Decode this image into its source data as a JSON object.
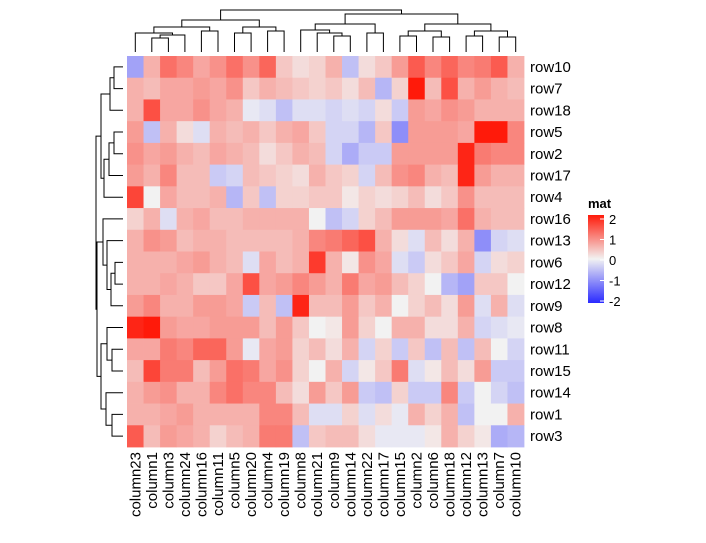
{
  "chart_data": {
    "type": "heatmap",
    "title": "",
    "legend": {
      "title": "mat",
      "ticks": [
        2,
        1,
        0,
        -1,
        -2
      ],
      "tick_labels": [
        "2",
        "1",
        "0",
        "-1",
        "-2"
      ],
      "color_stops": [
        {
          "value": -2,
          "color": "#2a2aff"
        },
        {
          "value": 0,
          "color": "#f2f2f2"
        },
        {
          "value": 2,
          "color": "#ff1a0a"
        }
      ]
    },
    "columns": [
      "column23",
      "column1",
      "column3",
      "column24",
      "column16",
      "column11",
      "column5",
      "column20",
      "column4",
      "column19",
      "column8",
      "column21",
      "column9",
      "column14",
      "column22",
      "column17",
      "column15",
      "column2",
      "column6",
      "column18",
      "column12",
      "column13",
      "column7",
      "column10"
    ],
    "rows": [
      "row10",
      "row7",
      "row18",
      "row5",
      "row2",
      "row17",
      "row4",
      "row16",
      "row13",
      "row6",
      "row12",
      "row9",
      "row8",
      "row11",
      "row15",
      "row14",
      "row1",
      "row3"
    ],
    "values": [
      [
        -0.8,
        0.6,
        1.2,
        1.0,
        0.7,
        0.9,
        1.2,
        0.9,
        1.3,
        0.4,
        0.2,
        0.3,
        0.6,
        -0.5,
        0.2,
        0.4,
        0.8,
        1.4,
        1.0,
        1.3,
        1.0,
        1.1,
        1.4,
        0.6
      ],
      [
        0.6,
        0.5,
        0.7,
        0.7,
        0.8,
        0.7,
        0.9,
        0.4,
        0.6,
        0.5,
        0.4,
        0.3,
        0.4,
        0.2,
        0.5,
        -0.6,
        0.3,
        2.0,
        0.5,
        1.5,
        0.6,
        0.8,
        0.6,
        0.5
      ],
      [
        0.6,
        1.5,
        0.7,
        0.7,
        0.9,
        0.7,
        0.6,
        -0.1,
        -0.2,
        -0.5,
        -0.2,
        -0.2,
        -0.3,
        -0.2,
        -0.3,
        0.2,
        -0.4,
        0.8,
        0.7,
        0.9,
        0.8,
        0.6,
        0.6,
        0.6
      ],
      [
        0.8,
        -0.5,
        0.6,
        0.2,
        -0.2,
        0.6,
        0.5,
        0.6,
        0.4,
        0.6,
        0.7,
        0.4,
        -0.3,
        -0.3,
        -0.6,
        0.4,
        -1.0,
        0.8,
        0.8,
        0.8,
        0.7,
        2.0,
        2.0,
        1.0
      ],
      [
        0.9,
        0.7,
        0.8,
        0.6,
        0.5,
        0.7,
        0.6,
        0.5,
        0.2,
        0.4,
        0.6,
        0.5,
        -0.3,
        -0.7,
        -0.4,
        -0.4,
        0.8,
        0.8,
        0.8,
        0.8,
        1.9,
        1.1,
        1.0,
        1.0
      ],
      [
        0.8,
        0.6,
        1.0,
        0.5,
        0.5,
        -0.4,
        -0.3,
        0.5,
        0.4,
        0.3,
        0.2,
        0.6,
        0.4,
        0.3,
        -0.3,
        0.5,
        0.9,
        1.0,
        0.6,
        0.5,
        1.9,
        0.8,
        0.6,
        0.6
      ],
      [
        1.6,
        0.0,
        0.7,
        0.5,
        0.5,
        0.6,
        -0.6,
        0.4,
        -0.5,
        0.3,
        0.3,
        0.4,
        0.4,
        0.1,
        0.3,
        0.2,
        0.3,
        0.5,
        0.2,
        0.4,
        0.9,
        0.5,
        0.5,
        0.5
      ],
      [
        0.3,
        0.6,
        -0.2,
        0.6,
        0.7,
        0.5,
        0.5,
        0.6,
        0.6,
        0.6,
        0.6,
        0.0,
        -0.5,
        -0.3,
        0.3,
        0.5,
        0.8,
        0.8,
        0.8,
        0.7,
        1.2,
        0.6,
        0.5,
        0.5
      ],
      [
        0.6,
        0.9,
        0.8,
        0.5,
        0.6,
        0.6,
        0.5,
        0.5,
        0.5,
        0.5,
        0.6,
        1.0,
        1.1,
        1.3,
        1.5,
        0.6,
        0.2,
        -0.2,
        0.5,
        0.2,
        0.6,
        -1.0,
        -0.3,
        -0.2
      ],
      [
        0.6,
        0.6,
        0.6,
        0.7,
        0.8,
        0.6,
        0.5,
        -0.2,
        0.7,
        0.5,
        0.6,
        1.7,
        0.6,
        0.1,
        0.9,
        0.7,
        -0.2,
        -0.4,
        0.2,
        0.4,
        0.7,
        -0.3,
        0.2,
        0.3
      ],
      [
        0.6,
        0.6,
        0.7,
        0.6,
        0.4,
        0.4,
        0.7,
        1.5,
        0.7,
        0.8,
        1.0,
        0.8,
        0.6,
        1.1,
        0.7,
        0.8,
        0.5,
        0.3,
        0.0,
        -0.6,
        -0.8,
        0.4,
        0.4,
        0.0
      ],
      [
        0.8,
        1.0,
        0.6,
        0.6,
        0.8,
        0.8,
        0.7,
        -0.4,
        0.5,
        -0.5,
        1.9,
        0.5,
        0.5,
        0.8,
        0.4,
        0.6,
        0.0,
        0.3,
        0.5,
        0.2,
        0.8,
        -0.2,
        0.6,
        -0.2
      ],
      [
        1.9,
        2.0,
        0.8,
        0.7,
        0.7,
        0.8,
        0.8,
        0.8,
        0.5,
        0.8,
        0.4,
        0.0,
        0.1,
        0.8,
        0.3,
        0.0,
        0.6,
        0.6,
        0.2,
        0.2,
        0.6,
        -0.3,
        -0.2,
        -0.1
      ],
      [
        0.7,
        0.7,
        1.1,
        1.0,
        1.3,
        1.3,
        0.8,
        -0.1,
        0.7,
        0.8,
        0.3,
        0.5,
        0.2,
        0.6,
        -0.3,
        0.3,
        -0.4,
        0.4,
        -0.5,
        0.5,
        -0.5,
        0.5,
        0.0,
        -0.3
      ],
      [
        0.5,
        1.6,
        1.1,
        1.1,
        0.5,
        0.8,
        1.2,
        1.1,
        0.7,
        0.9,
        0.3,
        0.0,
        0.6,
        -0.3,
        0.1,
        0.4,
        1.1,
        -0.2,
        0.1,
        0.5,
        0.2,
        0.8,
        -0.4,
        -0.4
      ],
      [
        0.6,
        0.8,
        0.9,
        0.6,
        0.6,
        1.0,
        1.2,
        1.0,
        1.0,
        0.5,
        0.2,
        0.8,
        0.4,
        0.8,
        -0.4,
        -0.5,
        0.3,
        -0.4,
        -0.4,
        1.0,
        -0.4,
        0.0,
        -0.3,
        -0.5
      ],
      [
        0.6,
        0.6,
        0.7,
        0.8,
        0.6,
        0.6,
        0.6,
        0.6,
        1.0,
        1.0,
        0.5,
        -0.2,
        -0.2,
        0.3,
        -0.2,
        0.2,
        -0.1,
        0.6,
        0.3,
        0.6,
        -0.5,
        0.0,
        0.0,
        0.6
      ],
      [
        1.4,
        0.5,
        0.8,
        0.7,
        0.6,
        0.3,
        0.5,
        0.6,
        1.1,
        1.1,
        -0.5,
        0.4,
        0.5,
        0.5,
        0.2,
        -0.1,
        -0.1,
        -0.1,
        0.1,
        0.6,
        0.3,
        0.1,
        -0.7,
        -0.6
      ]
    ]
  }
}
